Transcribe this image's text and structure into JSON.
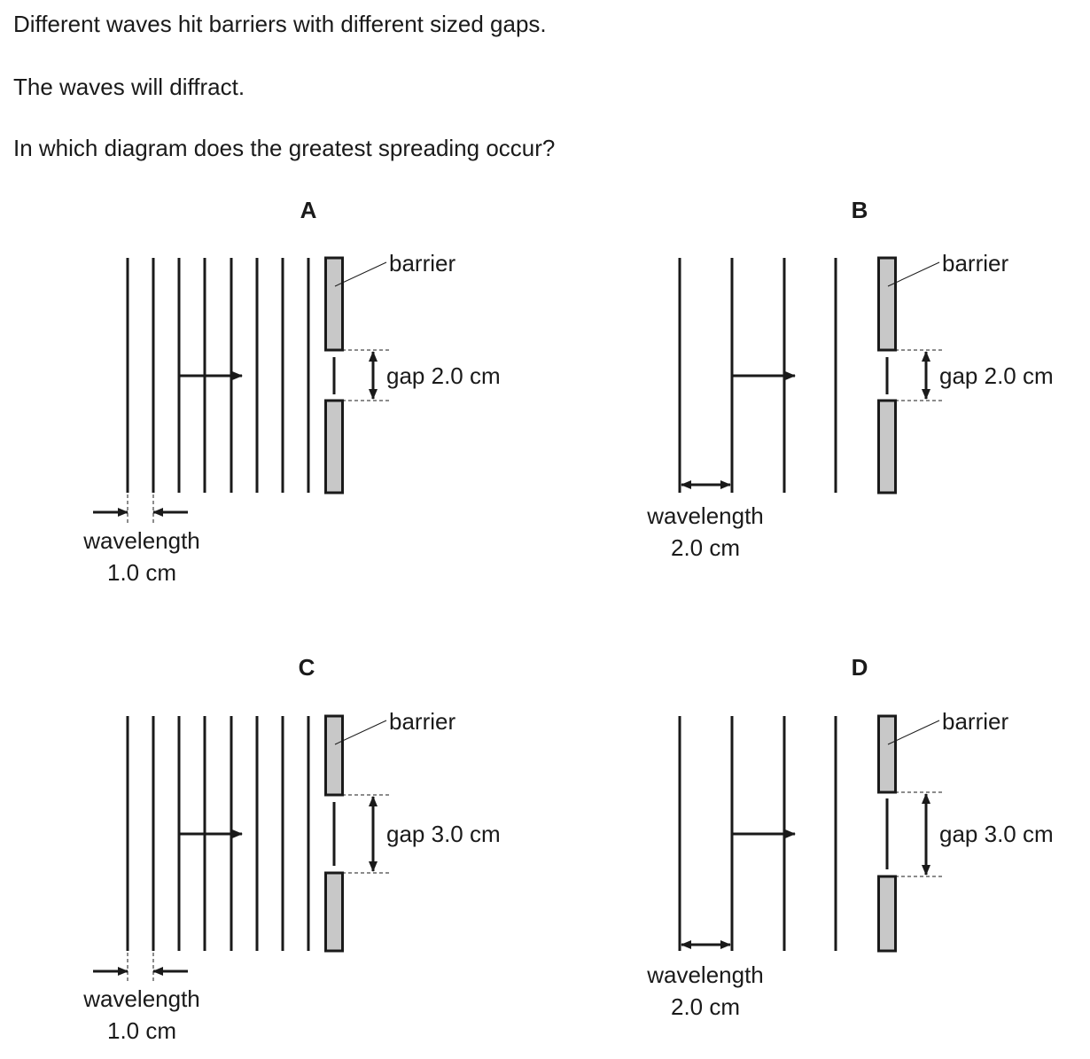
{
  "question": {
    "line1": "Different waves hit barriers with different sized gaps.",
    "line2": "The waves will diffract.",
    "line3": "In which diagram does the greatest spreading occur?"
  },
  "diagrams": [
    {
      "id": "A",
      "barrier_label": "barrier",
      "gap_text": "gap 2.0 cm",
      "gap_cm": 2.0,
      "wavelength_label": "wavelength",
      "wavelength_value": "1.0 cm",
      "wavelength_cm": 1.0
    },
    {
      "id": "B",
      "barrier_label": "barrier",
      "gap_text": "gap 2.0 cm",
      "gap_cm": 2.0,
      "wavelength_label": "wavelength",
      "wavelength_value": "2.0 cm",
      "wavelength_cm": 2.0
    },
    {
      "id": "C",
      "barrier_label": "barrier",
      "gap_text": "gap 3.0 cm",
      "gap_cm": 3.0,
      "wavelength_label": "wavelength",
      "wavelength_value": "1.0 cm",
      "wavelength_cm": 1.0
    },
    {
      "id": "D",
      "barrier_label": "barrier",
      "gap_text": "gap 3.0 cm",
      "gap_cm": 3.0,
      "wavelength_label": "wavelength",
      "wavelength_value": "2.0 cm",
      "wavelength_cm": 2.0
    }
  ],
  "colors": {
    "barrier_fill": "#c8c8c8",
    "ink": "#1a1a1a"
  }
}
